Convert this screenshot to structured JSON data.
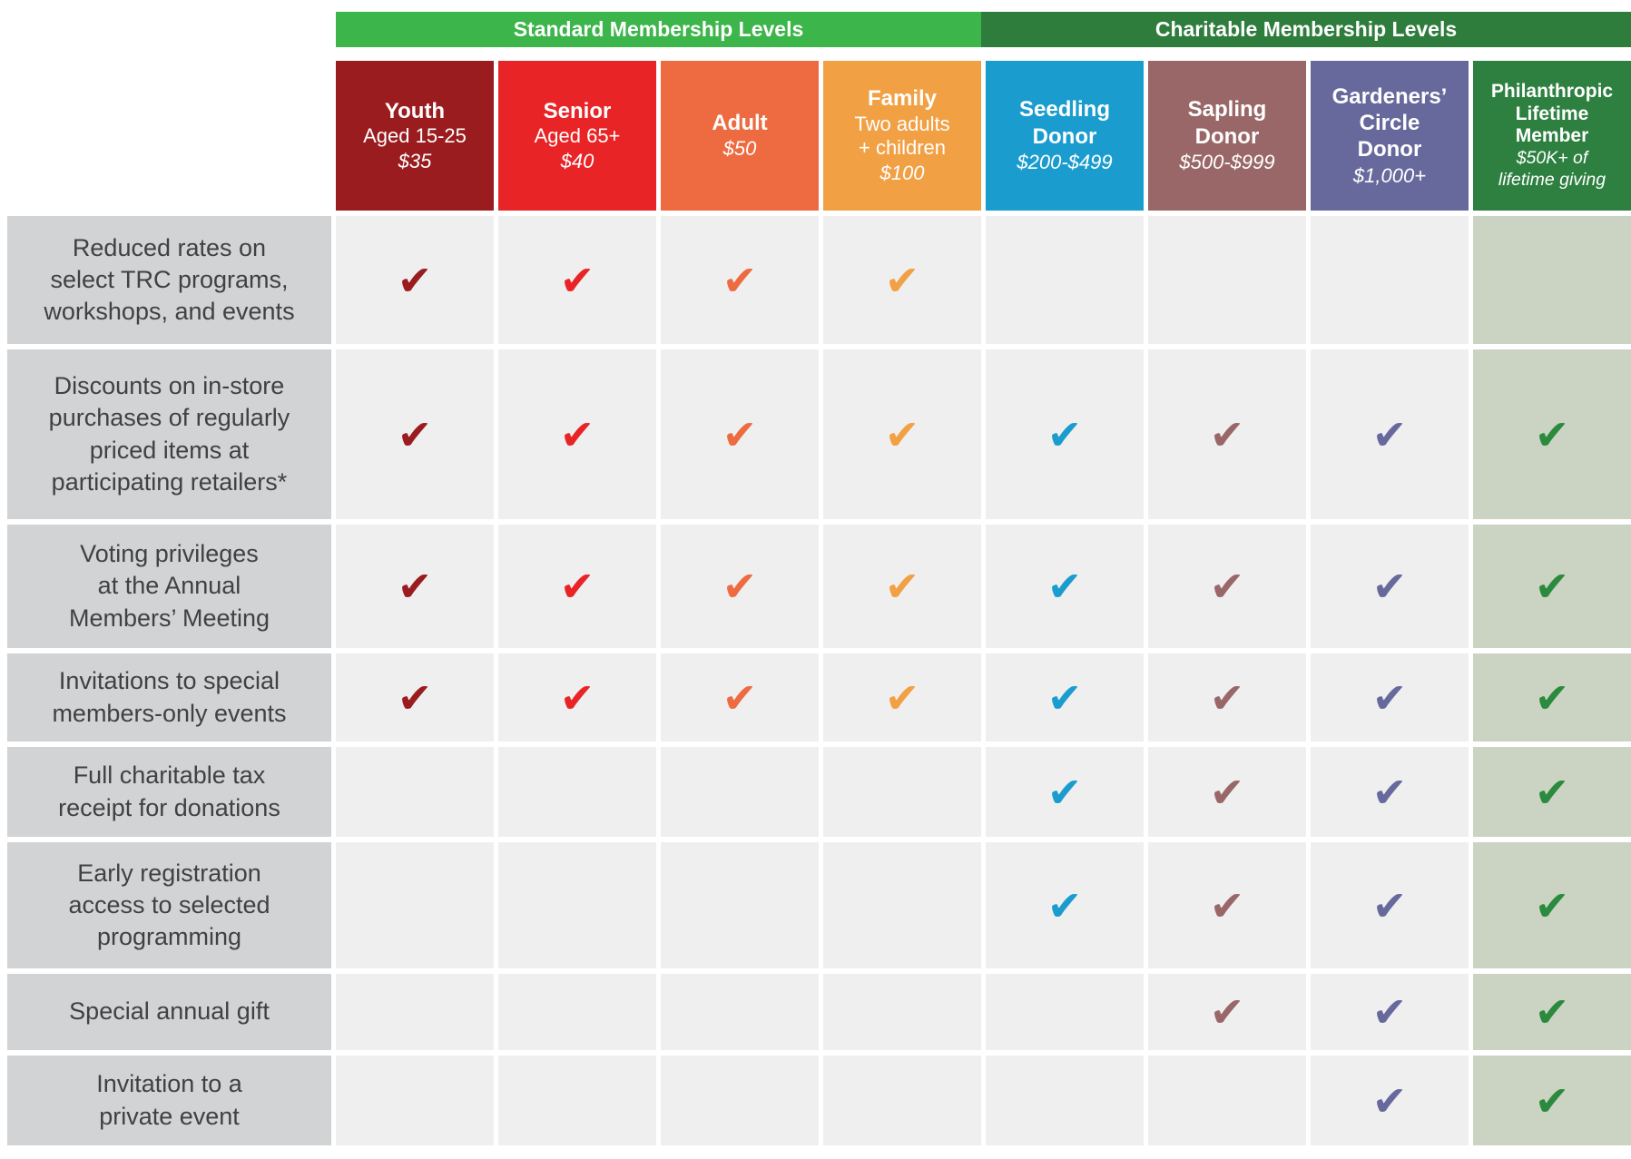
{
  "band_header": {
    "standard": "Standard Membership Levels",
    "charitable": "Charitable Membership Levels",
    "standard_color": "#3cb54a",
    "charitable_color": "#2e7d3c"
  },
  "check_glyph": "✔",
  "columns": [
    {
      "name": "Youth",
      "sub": "Aged 15-25",
      "price": "$35",
      "color": "#9a1c1f"
    },
    {
      "name": "Senior",
      "sub": "Aged 65+",
      "price": "$40",
      "color": "#e92427"
    },
    {
      "name": "Adult",
      "sub": "",
      "price": "$50",
      "color": "#ee6b41"
    },
    {
      "name": "Family",
      "sub": "Two adults\n+ children",
      "price": "$100",
      "color": "#f2a044"
    },
    {
      "name": "Seedling\nDonor",
      "sub": "",
      "price": "$200-$499",
      "color": "#1b9ccf"
    },
    {
      "name": "Sapling\nDonor",
      "sub": "",
      "price": "$500-$999",
      "color": "#9a6768"
    },
    {
      "name": "Gardeners’\nCircle\nDonor",
      "sub": "",
      "price": "$1,000+",
      "color": "#67699c"
    },
    {
      "name": "Philanthropic\nLifetime\nMember",
      "sub": "",
      "price": "$50K+ of\nlifetime giving",
      "color": "#2e8040",
      "check_color": "#2b8a3e",
      "cell_bg": "#cbd3c2"
    }
  ],
  "rows": [
    {
      "label": "Reduced rates on\nselect TRC programs,\nworkshops, and events",
      "marks": [
        "✔",
        "✔",
        "✔",
        "✔",
        "",
        "",
        "",
        ""
      ]
    },
    {
      "label": "Discounts on in-store\npurchases of regularly\npriced items at\nparticipating retailers*",
      "marks": [
        "✔",
        "✔",
        "✔",
        "✔",
        "✔",
        "✔",
        "✔",
        "✔"
      ]
    },
    {
      "label": "Voting privileges\nat the Annual\nMembers’ Meeting",
      "marks": [
        "✔",
        "✔",
        "✔",
        "✔",
        "✔",
        "✔",
        "✔",
        "✔"
      ]
    },
    {
      "label": "Invitations to special\nmembers-only events",
      "marks": [
        "✔",
        "✔",
        "✔",
        "✔",
        "✔",
        "✔",
        "✔",
        "✔"
      ]
    },
    {
      "label": "Full charitable tax\nreceipt for donations",
      "marks": [
        "",
        "",
        "",
        "",
        "✔",
        "✔",
        "✔",
        "✔"
      ]
    },
    {
      "label": "Early registration\naccess to selected\nprogramming",
      "marks": [
        "",
        "",
        "",
        "",
        "✔",
        "✔",
        "✔",
        "✔"
      ]
    },
    {
      "label": "Special annual gift",
      "marks": [
        "",
        "",
        "",
        "",
        "",
        "✔",
        "✔",
        "✔"
      ]
    },
    {
      "label": "Invitation to a\nprivate event",
      "marks": [
        "",
        "",
        "",
        "",
        "",
        "",
        "✔",
        "✔"
      ]
    }
  ],
  "styles": {
    "label_bg": "#d1d3d4",
    "cell_bg": "#efeff0",
    "philanthropic_cell_bg": "#cbd3c2",
    "label_text": "#3f4142"
  }
}
